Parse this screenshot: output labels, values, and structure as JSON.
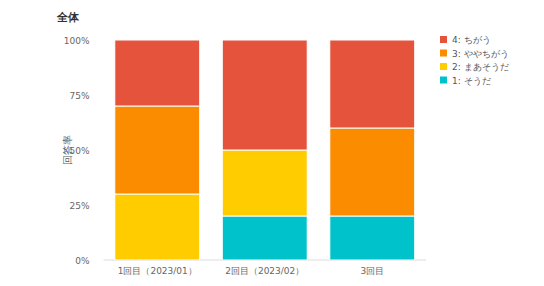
{
  "chart_data": {
    "type": "bar",
    "stacked": true,
    "title": "全体",
    "y_label": "回答率",
    "categories": [
      "1回目（2023/01）",
      "2回目（2023/02）",
      "3回目"
    ],
    "series": [
      {
        "name": "1: そうだ",
        "color": "#00c2cb",
        "values": [
          0,
          20,
          20
        ]
      },
      {
        "name": "2: まあそうだ",
        "color": "#ffcc00",
        "values": [
          30,
          30,
          0
        ]
      },
      {
        "name": "3: ややちがう",
        "color": "#fb8c00",
        "values": [
          40,
          0,
          40
        ]
      },
      {
        "name": "4: ちがう",
        "color": "#e5533d",
        "values": [
          30,
          50,
          40
        ]
      }
    ],
    "ylim": [
      0,
      100
    ],
    "yticks": [
      {
        "value": 0,
        "label": "0%"
      },
      {
        "value": 25,
        "label": "25%"
      },
      {
        "value": 50,
        "label": "50%"
      },
      {
        "value": 75,
        "label": "75%"
      },
      {
        "value": 100,
        "label": "100%"
      }
    ],
    "grid": false,
    "legend": "top-right"
  }
}
